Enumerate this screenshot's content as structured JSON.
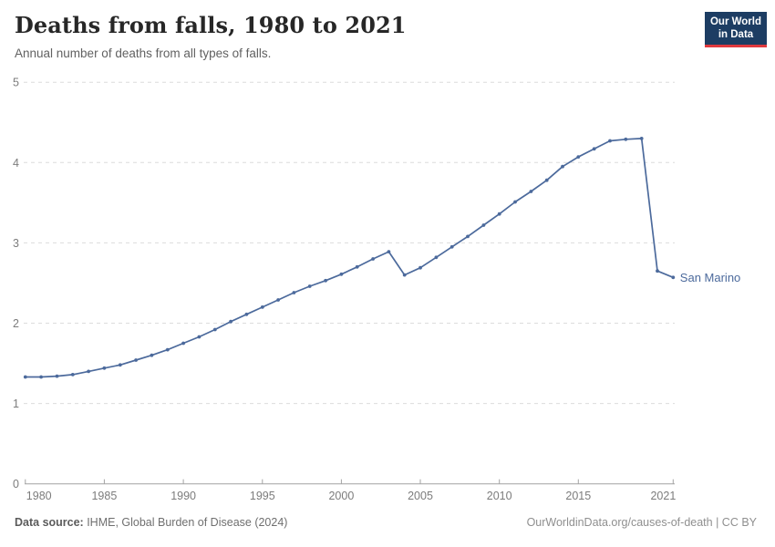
{
  "header": {
    "title": "Deaths from falls, 1980 to 2021",
    "subtitle": "Annual number of deaths from all types of falls.",
    "logo": {
      "line1": "Our World",
      "line2": "in Data",
      "bg_color": "#1d3d63",
      "accent_color": "#e0393e"
    }
  },
  "chart_data": {
    "type": "line",
    "title": "Deaths from falls, 1980 to 2021",
    "subtitle": "Annual number of deaths from all types of falls.",
    "xlabel": "",
    "ylabel": "",
    "xlim": [
      1980,
      2021
    ],
    "ylim": [
      0,
      5
    ],
    "yticks": [
      0,
      1,
      2,
      3,
      4,
      5
    ],
    "xticks": [
      1980,
      1985,
      1990,
      1995,
      2000,
      2005,
      2010,
      2015,
      2021
    ],
    "grid": "horizontal-dashed",
    "legend_position": "end-of-line-label",
    "end_label": "San Marino",
    "colors": {
      "line": "#4c6a9c",
      "grid": "#dcdcdc",
      "axis": "#a3a3a3",
      "tick_label": "#7c7c7c"
    },
    "series": [
      {
        "name": "San Marino",
        "color": "#4c6a9c",
        "x": [
          1980,
          1981,
          1982,
          1983,
          1984,
          1985,
          1986,
          1987,
          1988,
          1989,
          1990,
          1991,
          1992,
          1993,
          1994,
          1995,
          1996,
          1997,
          1998,
          1999,
          2000,
          2001,
          2002,
          2003,
          2004,
          2005,
          2006,
          2007,
          2008,
          2009,
          2010,
          2011,
          2012,
          2013,
          2014,
          2015,
          2016,
          2017,
          2018,
          2019,
          2020,
          2021
        ],
        "values": [
          1.33,
          1.33,
          1.34,
          1.36,
          1.4,
          1.44,
          1.48,
          1.54,
          1.6,
          1.67,
          1.75,
          1.83,
          1.92,
          2.02,
          2.11,
          2.2,
          2.29,
          2.38,
          2.46,
          2.53,
          2.61,
          2.7,
          2.8,
          2.89,
          2.6,
          2.69,
          2.82,
          2.95,
          3.08,
          3.22,
          3.36,
          3.51,
          3.64,
          3.78,
          3.95,
          4.07,
          4.17,
          4.27,
          4.29,
          4.3,
          2.65,
          2.57
        ]
      }
    ]
  },
  "footer": {
    "source_label": "Data source:",
    "source_text": " IHME, Global Burden of Disease (2024)",
    "credit": "OurWorldinData.org/causes-of-death | CC BY"
  }
}
